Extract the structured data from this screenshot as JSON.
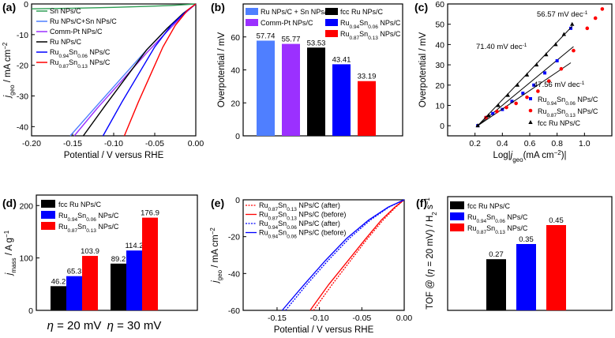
{
  "colors": {
    "green": "#2e9e54",
    "blue": "#0000ff",
    "purple": "#9b30ff",
    "black": "#000000",
    "red": "#ff0000",
    "lightblue": "#4f7fff"
  },
  "chart_data": [
    {
      "panel": "(a)",
      "type": "line",
      "xlabel": "Potential / V versus RHE",
      "ylabel": "j_geo / mA cm^-2",
      "xlim": [
        -0.2,
        0.0
      ],
      "ylim": [
        -43,
        0
      ],
      "xticks": [
        "-0.20",
        "-0.15",
        "-0.10",
        "-0.05",
        "0.00"
      ],
      "yticks": [
        "0",
        "-10",
        "-20",
        "-30",
        "-40"
      ],
      "series": [
        {
          "name": "Sn NPs/C",
          "color": "#2e9e54",
          "x": [
            -0.2,
            -0.15,
            -0.1,
            -0.06,
            -0.03,
            -0.012,
            0.0
          ],
          "y": [
            -1.6,
            -1.4,
            -1.1,
            -0.8,
            -0.5,
            -0.2,
            0.0
          ]
        },
        {
          "name": "Ru NPs/C+Sn NPs/C",
          "color": "#4f7fff",
          "x": [
            -0.153,
            -0.12,
            -0.09,
            -0.06,
            -0.035,
            -0.015,
            0.0
          ],
          "y": [
            -43,
            -33,
            -24,
            -15,
            -8,
            -3,
            0
          ]
        },
        {
          "name": "Comm-Pt NPs/C",
          "color": "#9b30ff",
          "x": [
            -0.148,
            -0.12,
            -0.09,
            -0.06,
            -0.035,
            -0.015,
            0.0
          ],
          "y": [
            -43,
            -34,
            -25,
            -16,
            -9,
            -3.5,
            0
          ]
        },
        {
          "name": "Ru NPs/C",
          "color": "#000000",
          "x": [
            -0.137,
            -0.11,
            -0.085,
            -0.06,
            -0.035,
            -0.015,
            0.0
          ],
          "y": [
            -43,
            -33,
            -24,
            -15,
            -8,
            -3,
            0
          ]
        },
        {
          "name": "Ru0.94Sn0.06 NPs/C",
          "color": "#0000ff",
          "x": [
            -0.113,
            -0.09,
            -0.07,
            -0.05,
            -0.03,
            -0.012,
            0.0
          ],
          "y": [
            -43,
            -32,
            -23,
            -14,
            -7,
            -2.5,
            0
          ]
        },
        {
          "name": "Ru0.87Sn0.13 NPs/C",
          "color": "#ff0000",
          "x": [
            -0.087,
            -0.07,
            -0.055,
            -0.04,
            -0.025,
            -0.01,
            0.0
          ],
          "y": [
            -43,
            -32,
            -23,
            -14,
            -7,
            -2,
            0
          ]
        }
      ],
      "legend": [
        {
          "label": "Sn NPs/C"
        },
        {
          "label": "Ru NPs/C+Sn NPs/C"
        },
        {
          "label": "Comm-Pt NPs/C"
        },
        {
          "label": "Ru NPs/C"
        },
        {
          "label": "Ru",
          "sub1": "0.94",
          "mid": "Sn",
          "sub2": "0.06",
          "tail": " NPs/C"
        },
        {
          "label": "Ru",
          "sub1": "0.87",
          "mid": "Sn",
          "sub2": "0.13",
          "tail": " NPs/C"
        }
      ]
    },
    {
      "panel": "(b)",
      "type": "bar",
      "ylabel": "Overpotential / mV",
      "ylim": [
        0,
        80
      ],
      "yticks": [
        "0",
        "20",
        "40",
        "60"
      ],
      "categories": [
        "Ru NPs/C + Sn NPs/C",
        "Comm-Pt NPs/C",
        "fcc Ru NPs/C",
        "Ru0.94Sn0.06 NPs/C",
        "Ru0.87Sn0.13 NPs/C"
      ],
      "values": [
        57.74,
        55.77,
        53.53,
        43.41,
        33.19
      ],
      "labels": [
        "57.74",
        "55.77",
        "53.53",
        "43.41",
        "33.19"
      ],
      "bar_colors": [
        "#4f7fff",
        "#9b30ff",
        "#000000",
        "#0000ff",
        "#ff0000"
      ],
      "legend": [
        {
          "label": "Ru NPs/C + Sn NPs/C"
        },
        {
          "label": "Comm-Pt NPs/C"
        },
        {
          "label": "fcc Ru NPs/C"
        },
        {
          "label": "Ru",
          "sub1": "0.94",
          "mid": "Sn",
          "sub2": "0.06",
          "tail": " NPs/C"
        },
        {
          "label": "Ru",
          "sub1": "0.87",
          "mid": "Sn",
          "sub2": "0.13",
          "tail": " NPs/C"
        }
      ]
    },
    {
      "panel": "(c)",
      "type": "scatter",
      "xlabel": "Log|j_geo(mA cm^-2)|",
      "ylabel": "Overpotential / mV",
      "xlim": [
        0.0,
        1.2
      ],
      "ylim": [
        -5,
        60
      ],
      "xticks": [
        "0.2",
        "0.4",
        "0.6",
        "0.8",
        "1.0"
      ],
      "yticks": [
        "0",
        "10",
        "20",
        "30",
        "40",
        "50",
        "60"
      ],
      "series": [
        {
          "name": "Ru0.94Sn0.06 NPs/C",
          "color": "#0000ff",
          "marker": "square",
          "x": [
            0.22,
            0.28,
            0.33,
            0.4,
            0.47,
            0.55,
            0.63,
            0.71,
            0.8,
            0.9
          ],
          "y": [
            0,
            4,
            6,
            8,
            12,
            16,
            20,
            26,
            32,
            48
          ],
          "fit": {
            "x": [
              0.22,
              0.92
            ],
            "y": [
              0,
              39
            ]
          }
        },
        {
          "name": "Ru0.87Sn0.13 NPs/C",
          "color": "#ff0000",
          "marker": "circle",
          "x": [
            0.28,
            0.36,
            0.43,
            0.5,
            0.58,
            0.66,
            0.74,
            0.83,
            0.92,
            1.02,
            1.08,
            1.13
          ],
          "y": [
            4,
            7,
            9,
            11,
            14,
            17,
            22,
            28,
            37,
            48,
            53,
            57.5
          ],
          "fit": {
            "x": [
              0.22,
              0.9
            ],
            "y": [
              0,
              31
            ]
          }
        },
        {
          "name": "fcc Ru NPs/C",
          "color": "#000000",
          "marker": "triangle",
          "x": [
            0.22,
            0.3,
            0.37,
            0.44,
            0.51,
            0.58,
            0.65,
            0.72,
            0.79,
            0.85,
            0.91
          ],
          "y": [
            0,
            5,
            10,
            15,
            20,
            25,
            30,
            35,
            40,
            45,
            50
          ],
          "fit": {
            "x": [
              0.22,
              0.91
            ],
            "y": [
              0,
              49
            ]
          }
        }
      ],
      "annotations": [
        {
          "text": "56.57 mV dec",
          "sup": "-1",
          "color": "#0000ff"
        },
        {
          "text": "71.40 mV dec",
          "sup": "-1",
          "color": "#000000"
        },
        {
          "text": "47.56 mV dec",
          "sup": "-1",
          "color": "#ff0000"
        }
      ],
      "legend": [
        {
          "label": "Ru",
          "sub1": "0.94",
          "mid": "Sn",
          "sub2": "0.06",
          "tail": " NPs/C"
        },
        {
          "label": "Ru",
          "sub1": "0.87",
          "mid": "Sn",
          "sub2": "0.13",
          "tail": " NPs/C"
        },
        {
          "label": "fcc Ru NPs/C"
        }
      ]
    },
    {
      "panel": "(d)",
      "type": "bar",
      "ylabel": "j_mass / A g^-1",
      "ylim": [
        0,
        220
      ],
      "yticks": [
        "0",
        "100",
        "200"
      ],
      "categories": [
        "η = 20 mV",
        "η = 30 mV"
      ],
      "series": [
        {
          "name": "fcc Ru NPs/C",
          "color": "#000000",
          "values": [
            46.2,
            89.2
          ],
          "labels": [
            "46.2",
            "89.2"
          ]
        },
        {
          "name": "Ru0.94Sn0.06 NPs/C",
          "color": "#0000ff",
          "values": [
            65.3,
            114.2
          ],
          "labels": [
            "65.3",
            "114.2"
          ]
        },
        {
          "name": "Ru0.87Sn0.13 NPs/C",
          "color": "#ff0000",
          "values": [
            103.9,
            176.9
          ],
          "labels": [
            "103.9",
            "176.9"
          ]
        }
      ],
      "cat_parts": [
        {
          "greek": "η",
          "rest": " = 20 mV"
        },
        {
          "greek": "η",
          "rest": " = 30 mV"
        }
      ],
      "legend": [
        {
          "label": "fcc Ru NPs/C"
        },
        {
          "label": "Ru",
          "sub1": "0.94",
          "mid": "Sn",
          "sub2": "0.06",
          "tail": " NPs/C"
        },
        {
          "label": "Ru",
          "sub1": "0.87",
          "mid": "Sn",
          "sub2": "0.13",
          "tail": " NPs/C"
        }
      ]
    },
    {
      "panel": "(e)",
      "type": "line",
      "xlabel": "Potential / V versus RHE",
      "ylabel": "j_geo / mA cm^-2",
      "xlim": [
        -0.19,
        0.0
      ],
      "ylim": [
        -60,
        0
      ],
      "xticks": [
        "-0.15",
        "-0.10",
        "-0.05",
        "0.00"
      ],
      "yticks": [
        "0",
        "-20",
        "-40",
        "-60"
      ],
      "series": [
        {
          "name": "Ru0.87Sn0.13 NPs/C (after)",
          "color": "#ff0000",
          "dash": true,
          "x": [
            -0.107,
            -0.085,
            -0.065,
            -0.045,
            -0.025,
            -0.01,
            0.0
          ],
          "y": [
            -60,
            -46,
            -34,
            -22,
            -11,
            -4,
            0
          ]
        },
        {
          "name": "Ru0.87Sn0.13 NPs/C (before)",
          "color": "#ff0000",
          "dash": false,
          "x": [
            -0.111,
            -0.089,
            -0.068,
            -0.047,
            -0.027,
            -0.011,
            0.0
          ],
          "y": [
            -60,
            -46,
            -34,
            -22,
            -11,
            -4,
            0
          ]
        },
        {
          "name": "Ru0.94Sn0.06 NPs/C (after)",
          "color": "#0000ff",
          "dash": true,
          "x": [
            -0.14,
            -0.115,
            -0.09,
            -0.065,
            -0.04,
            -0.018,
            0.0
          ],
          "y": [
            -60,
            -46,
            -33,
            -21,
            -11,
            -4,
            0
          ]
        },
        {
          "name": "Ru0.94Sn0.06 NPs/C (before)",
          "color": "#0000ff",
          "dash": false,
          "x": [
            -0.144,
            -0.118,
            -0.093,
            -0.068,
            -0.042,
            -0.019,
            0.0
          ],
          "y": [
            -60,
            -46,
            -33,
            -21,
            -11,
            -4,
            0
          ]
        }
      ],
      "legend": [
        {
          "label": "Ru",
          "sub1": "0.87",
          "mid": "Sn",
          "sub2": "0.13",
          "tail": " NPs/C (after)"
        },
        {
          "label": "Ru",
          "sub1": "0.87",
          "mid": "Sn",
          "sub2": "0.13",
          "tail": " NPs/C (before)"
        },
        {
          "label": "Ru",
          "sub1": "0.94",
          "mid": "Sn",
          "sub2": "0.06",
          "tail": " NPs/C (after)"
        },
        {
          "label": "Ru",
          "sub1": "0.94",
          "mid": "Sn",
          "sub2": "0.06",
          "tail": " NPs/C (before)"
        }
      ]
    },
    {
      "panel": "(f)",
      "type": "bar",
      "ylabel": "TOF @ (η = 20 mV) / H2 s^-1",
      "ylim": [
        0,
        0.6
      ],
      "categories": [
        "fcc Ru NPs/C",
        "Ru0.94Sn0.06 NPs/C",
        "Ru0.87Sn0.13 NPs/C"
      ],
      "values": [
        0.27,
        0.35,
        0.45
      ],
      "labels": [
        "0.27",
        "0.35",
        "0.45"
      ],
      "bar_colors": [
        "#000000",
        "#0000ff",
        "#ff0000"
      ],
      "legend": [
        {
          "label": "fcc Ru NPs/C"
        },
        {
          "label": "Ru",
          "sub1": "0.94",
          "mid": "Sn",
          "sub2": "0.06",
          "tail": " NPs/C"
        },
        {
          "label": "Ru",
          "sub1": "0.87",
          "mid": "Sn",
          "sub2": "0.13",
          "tail": " NPs/C"
        }
      ]
    }
  ]
}
